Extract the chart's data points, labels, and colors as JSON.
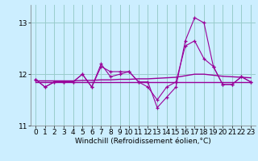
{
  "x": [
    0,
    1,
    2,
    3,
    4,
    5,
    6,
    7,
    8,
    9,
    10,
    11,
    12,
    13,
    14,
    15,
    16,
    17,
    18,
    19,
    20,
    21,
    22,
    23
  ],
  "series1": [
    11.9,
    11.75,
    11.85,
    11.85,
    11.85,
    12.0,
    11.75,
    12.2,
    11.95,
    12.0,
    12.05,
    11.85,
    11.85,
    11.35,
    11.55,
    11.75,
    12.65,
    13.1,
    13.0,
    12.15,
    11.8,
    11.8,
    11.95,
    11.85
  ],
  "series2": [
    11.9,
    11.75,
    11.85,
    11.85,
    11.85,
    12.0,
    11.75,
    12.15,
    12.05,
    12.05,
    12.05,
    11.85,
    11.75,
    11.5,
    11.75,
    11.85,
    12.55,
    12.65,
    12.3,
    12.15,
    11.8,
    11.8,
    11.95,
    11.85
  ],
  "line_flat": [
    11.85,
    11.85,
    11.85,
    11.85,
    11.85,
    11.85,
    11.85,
    11.85,
    11.85,
    11.85,
    11.85,
    11.85,
    11.85,
    11.85,
    11.85,
    11.85,
    11.85,
    11.85,
    11.85,
    11.85,
    11.85,
    11.85,
    11.85,
    11.85
  ],
  "line_trend": [
    11.87,
    11.87,
    11.87,
    11.87,
    11.87,
    11.88,
    11.88,
    11.89,
    11.89,
    11.9,
    11.9,
    11.91,
    11.91,
    11.92,
    11.93,
    11.94,
    11.97,
    12.0,
    12.0,
    11.98,
    11.96,
    11.95,
    11.94,
    11.93
  ],
  "bg_color": "#cceeff",
  "grid_color": "#99cccc",
  "line_color": "#990099",
  "xlabel": "Windchill (Refroidissement éolien,°C)",
  "xlim": [
    -0.5,
    23.5
  ],
  "ylim": [
    11.0,
    13.35
  ],
  "yticks": [
    11,
    12,
    13
  ],
  "xticks": [
    0,
    1,
    2,
    3,
    4,
    5,
    6,
    7,
    8,
    9,
    10,
    11,
    12,
    13,
    14,
    15,
    16,
    17,
    18,
    19,
    20,
    21,
    22,
    23
  ],
  "xlabel_fontsize": 6.5,
  "tick_fontsize": 6.5
}
